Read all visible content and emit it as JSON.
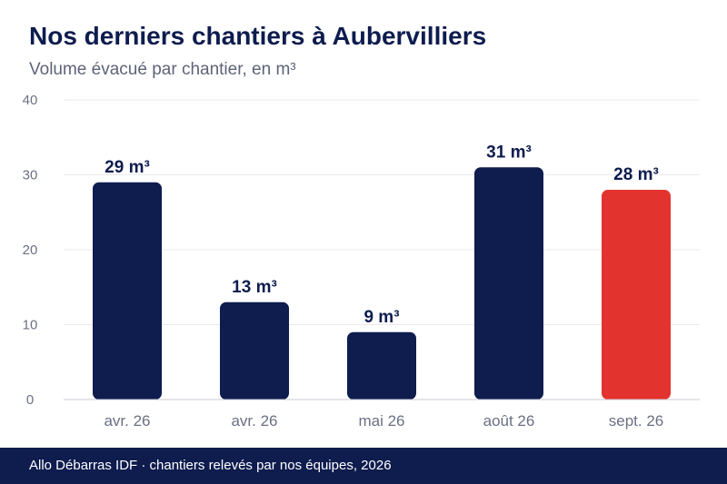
{
  "header": {
    "title": "Nos derniers chantiers à Aubervilliers",
    "subtitle": "Volume évacué par chantier, en m³"
  },
  "footer": {
    "text": "Allo Débarras IDF · chantiers relevés par nos équipes, 2026"
  },
  "colors": {
    "bar": "#0e1c4e",
    "highlight": "#e3332f",
    "grid": "#e9e9ee",
    "axis": "#c9cbd6",
    "tick_text": "#6b7083",
    "label_text": "#0e1c4e"
  },
  "chart_data": {
    "type": "bar",
    "title": "Nos derniers chantiers à Aubervilliers",
    "subtitle": "Volume évacué par chantier, en m³",
    "xlabel": "",
    "ylabel": "",
    "categories": [
      "avr. 26",
      "avr. 26",
      "mai 26",
      "août 26",
      "sept. 26"
    ],
    "values": [
      29,
      13,
      9,
      31,
      28
    ],
    "data_labels": [
      "29 m³",
      "13 m³",
      "9 m³",
      "31 m³",
      "28 m³"
    ],
    "highlight_index": 4,
    "ylim": [
      0,
      40
    ],
    "yticks": [
      0,
      10,
      20,
      30,
      40
    ],
    "grid": true,
    "legend": "none"
  }
}
